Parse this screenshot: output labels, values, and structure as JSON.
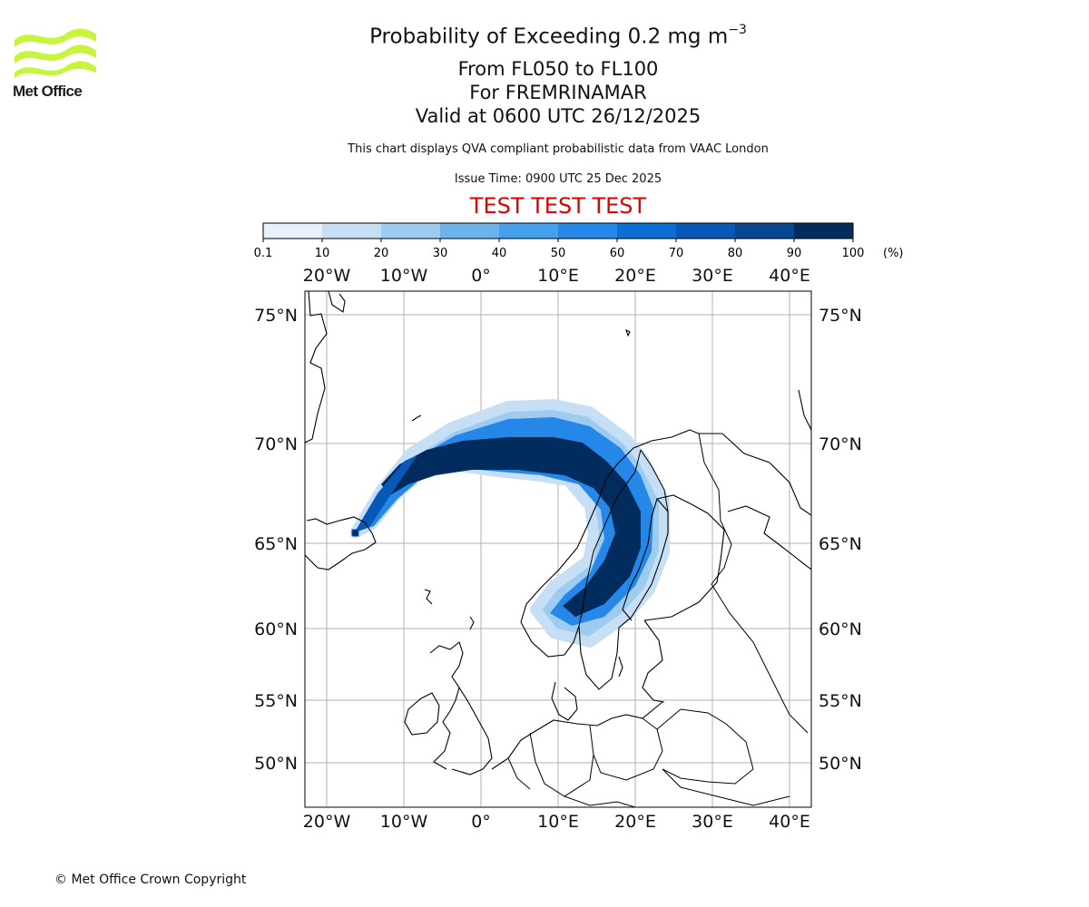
{
  "brand": {
    "name": "Met Office",
    "logo_color": "#c8f43c"
  },
  "title": {
    "main_prefix": "Probability of Exceeding 0.2 mg m",
    "main_exponent": "−3",
    "levels": "From FL050 to FL100",
    "region": "For FREMRINAMAR",
    "valid": "Valid at 0600 UTC 26/12/2025",
    "description": "This chart displays QVA compliant probabilistic data from VAAC London",
    "issue": "Issue Time: 0900 UTC 25 Dec 2025",
    "test_banner": "TEST TEST TEST",
    "test_color": "#e00000"
  },
  "colorbar": {
    "ticks": [
      "0.1",
      "10",
      "20",
      "30",
      "40",
      "50",
      "60",
      "70",
      "80",
      "90",
      "100"
    ],
    "unit": "(%)",
    "colors": [
      "#e7f1fb",
      "#c6dff5",
      "#9ecbf0",
      "#6db2ea",
      "#45a0ee",
      "#2588e8",
      "#0c6fd6",
      "#0858b8",
      "#07478f",
      "#032c5e"
    ]
  },
  "map": {
    "lon_labels": [
      "20°W",
      "10°W",
      "0°",
      "10°E",
      "20°E",
      "30°E",
      "40°E"
    ],
    "lat_labels": [
      "75°N",
      "70°N",
      "65°N",
      "60°N",
      "55°N",
      "50°N"
    ],
    "coast_color": "#000000",
    "grid_color": "#b0b0b0",
    "plume": {
      "source": "Iceland volcano",
      "source_marker": "■",
      "direction": "north-east then south over Scandinavia"
    }
  },
  "footer": {
    "copyright": "© Met Office Crown Copyright"
  }
}
